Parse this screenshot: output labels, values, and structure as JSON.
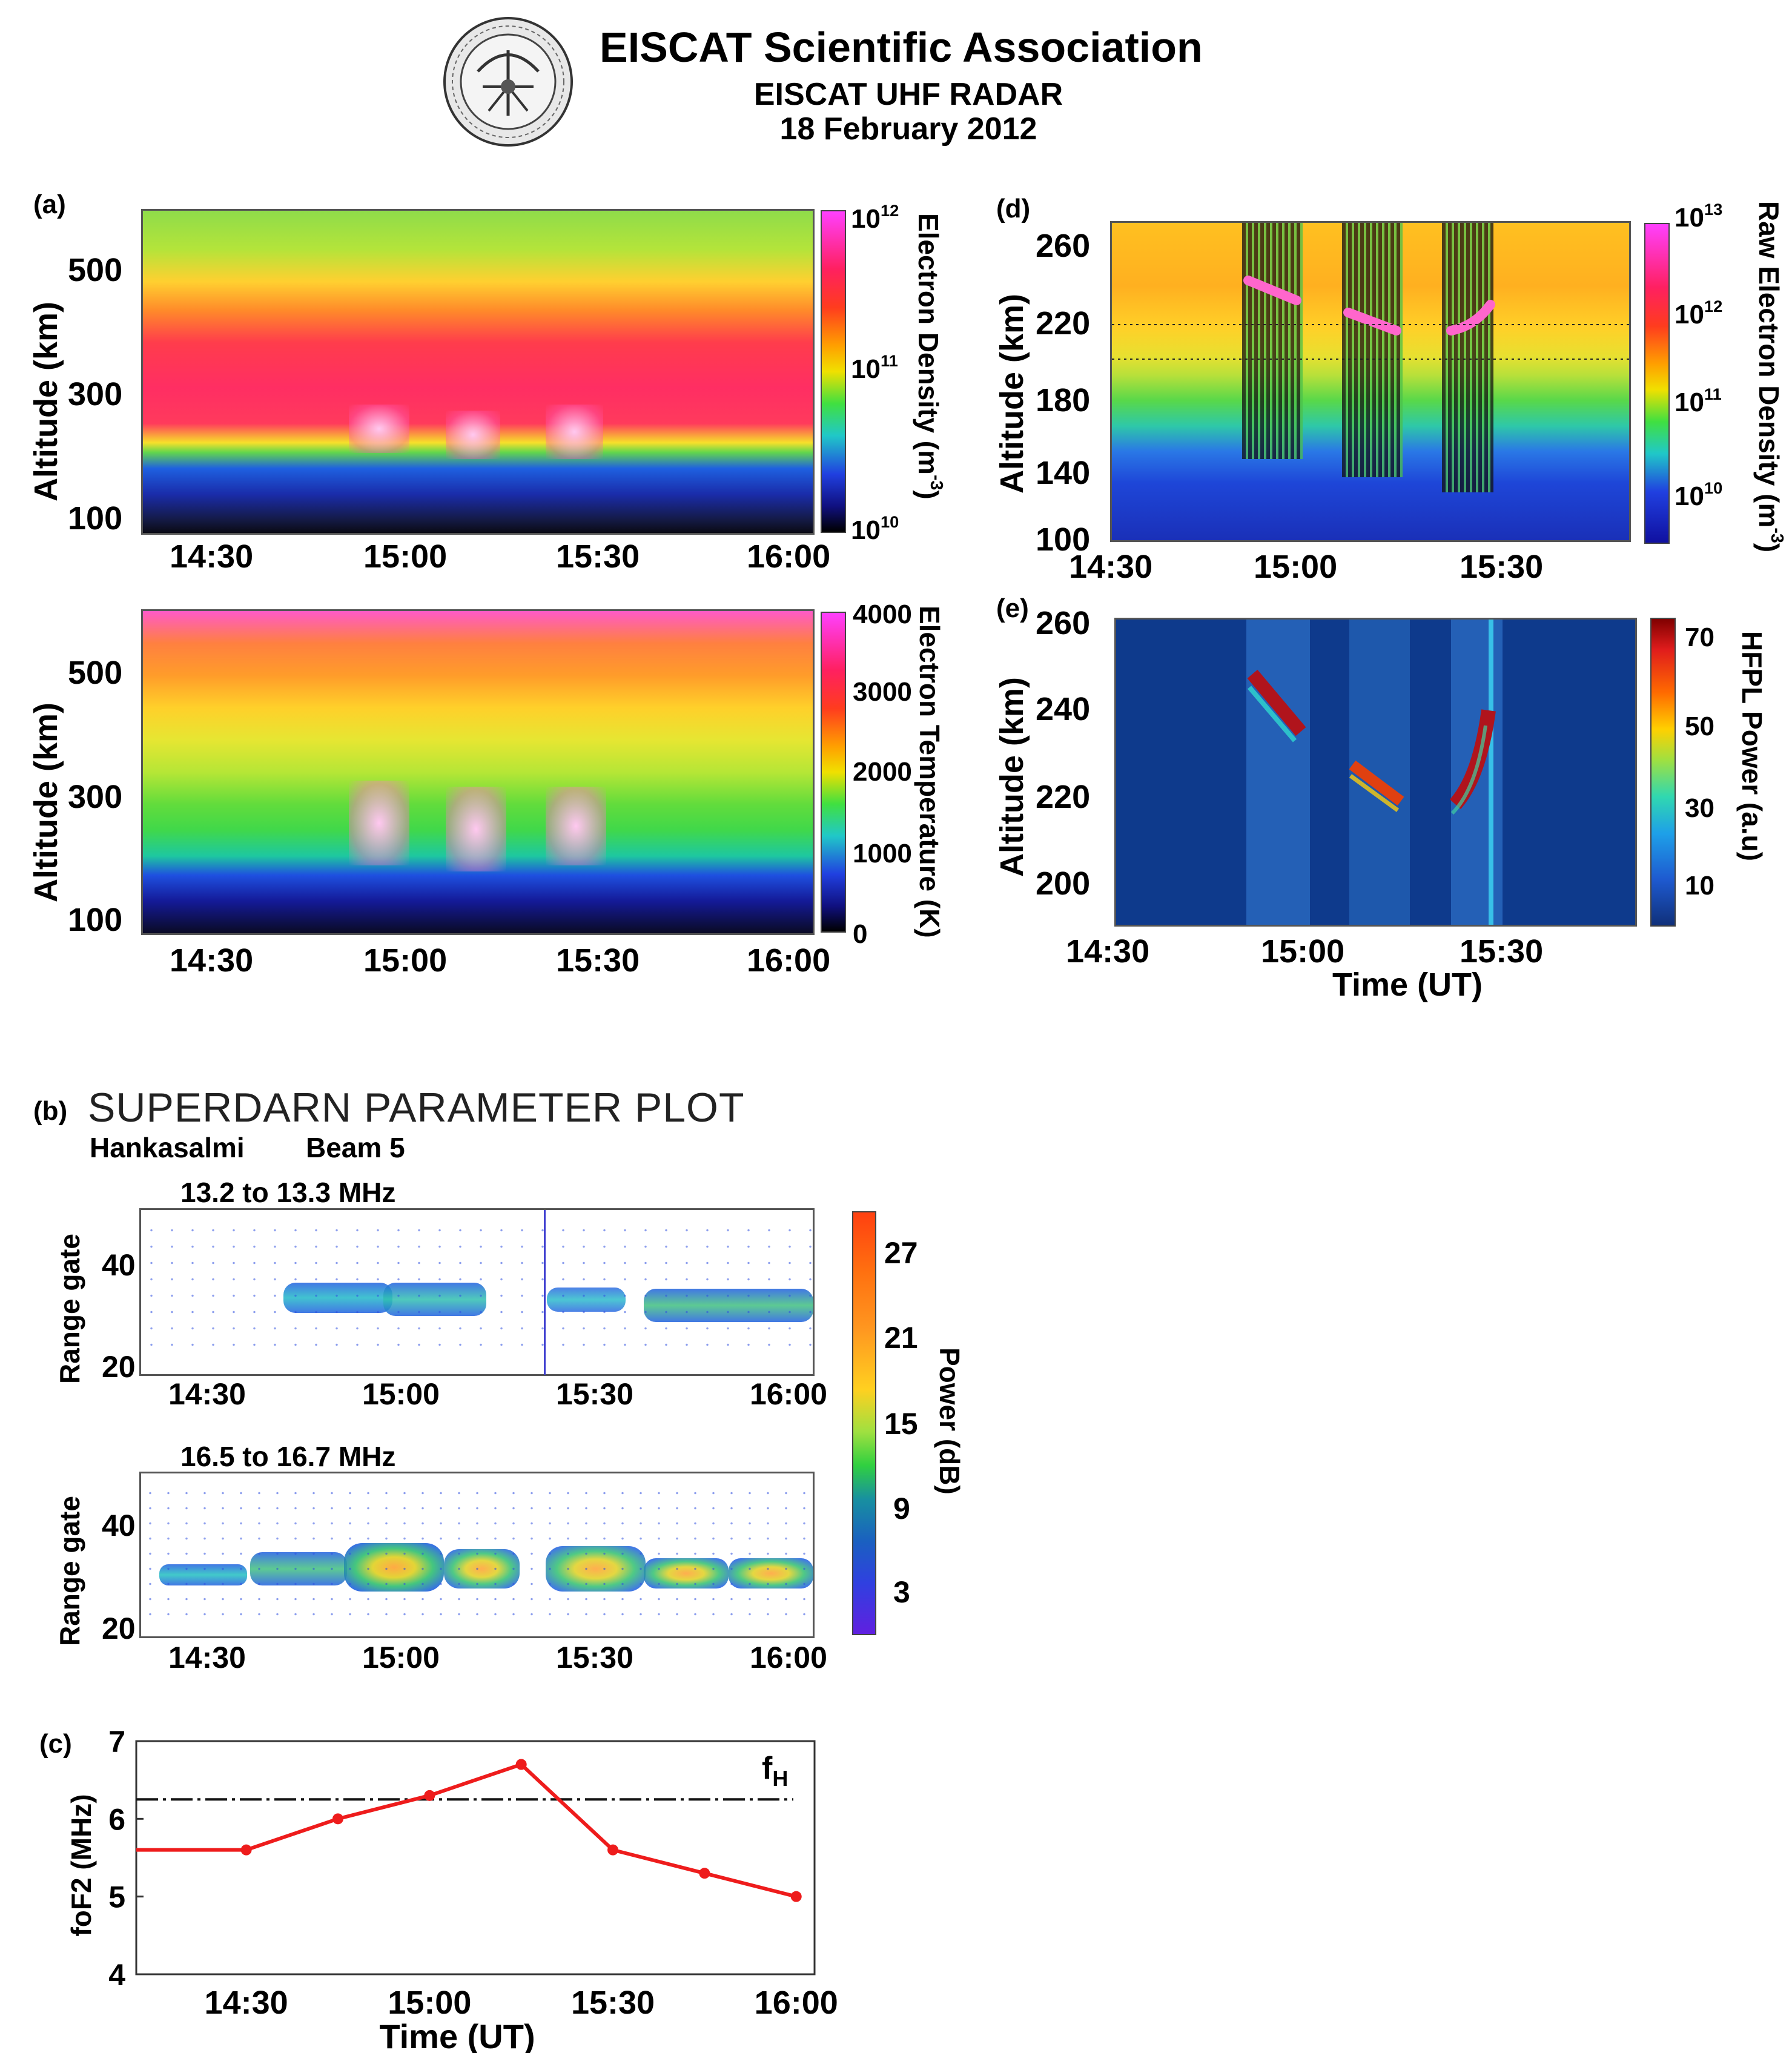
{
  "header": {
    "title": "EISCAT Scientific Association",
    "subtitle": "EISCAT UHF RADAR",
    "date": "18 February 2012",
    "logo_icon": "eiscat-seal-icon"
  },
  "panel_a": {
    "label": "(a)",
    "ylabel": "Altitude (km)",
    "x_ticks": [
      "14:30",
      "15:00",
      "15:30",
      "16:00"
    ],
    "top": {
      "y_ticks": [
        "500",
        "300",
        "100"
      ],
      "colorbar_title": "Electron Density (m",
      "colorbar_title_sup": "-3",
      "colorbar_title_end": ")",
      "cb_ticks": [
        {
          "base": "10",
          "exp": "12"
        },
        {
          "base": "10",
          "exp": "11"
        },
        {
          "base": "10",
          "exp": "10"
        }
      ]
    },
    "bottom": {
      "y_ticks": [
        "500",
        "300",
        "100"
      ],
      "colorbar_title": "Electron Temperature (K)",
      "cb_ticks": [
        "4000",
        "3000",
        "2000",
        "1000",
        "0"
      ]
    }
  },
  "panel_b": {
    "label": "(b)",
    "title": "SUPERDARN PARAMETER PLOT",
    "station": "Hankasalmi",
    "beam": "Beam 5",
    "ylabel": "Range gate",
    "y_ticks": [
      "40",
      "20"
    ],
    "x_ticks": [
      "14:30",
      "15:00",
      "15:30",
      "16:00"
    ],
    "top_freq": "13.2 to 13.3 MHz",
    "bottom_freq": "16.5 to 16.7 MHz",
    "colorbar_title": "Power (dB)",
    "cb_ticks": [
      "27",
      "21",
      "15",
      "9",
      "3"
    ]
  },
  "panel_d": {
    "label": "(d)",
    "ylabel": "Altitude (km)",
    "y_ticks": [
      "260",
      "220",
      "180",
      "140",
      "100"
    ],
    "x_ticks": [
      "14:30",
      "15:00",
      "15:30"
    ],
    "colorbar_title": "Raw Electron Density (m",
    "colorbar_title_sup": "-3",
    "colorbar_title_end": ")",
    "cb_ticks": [
      {
        "base": "10",
        "exp": "13"
      },
      {
        "base": "10",
        "exp": "12"
      },
      {
        "base": "10",
        "exp": "11"
      },
      {
        "base": "10",
        "exp": "10"
      }
    ]
  },
  "panel_e": {
    "label": "(e)",
    "ylabel": "Altitude (km)",
    "xlabel": "Time (UT)",
    "y_ticks": [
      "260",
      "240",
      "220",
      "200"
    ],
    "x_ticks": [
      "14:30",
      "15:00",
      "15:30"
    ],
    "colorbar_title": "HFPL Power (a.u)",
    "cb_ticks": [
      "70",
      "50",
      "30",
      "10"
    ]
  },
  "panel_c": {
    "label": "(c)",
    "fh_label": "f",
    "fh_sub": "H"
  },
  "chart_data": [
    {
      "id": "c",
      "type": "line",
      "title": "",
      "xlabel": "Time (UT)",
      "ylabel": "foF2 (MHz)",
      "x_ticks": [
        "14:30",
        "15:00",
        "15:30",
        "16:00"
      ],
      "y_ticks": [
        "7",
        "6",
        "5",
        "4"
      ],
      "xlim": [
        14.2,
        16.05
      ],
      "ylim": [
        4,
        7
      ],
      "series": [
        {
          "name": "foF2",
          "color": "#ee1c1c",
          "x": [
            14.5,
            14.75,
            15.0,
            15.25,
            15.5,
            15.75,
            16.0
          ],
          "values": [
            5.6,
            6.0,
            6.3,
            6.7,
            5.6,
            5.3,
            5.0
          ],
          "start_value": 5.6
        }
      ],
      "reference_line": {
        "name": "fH",
        "value": 6.25
      }
    }
  ]
}
